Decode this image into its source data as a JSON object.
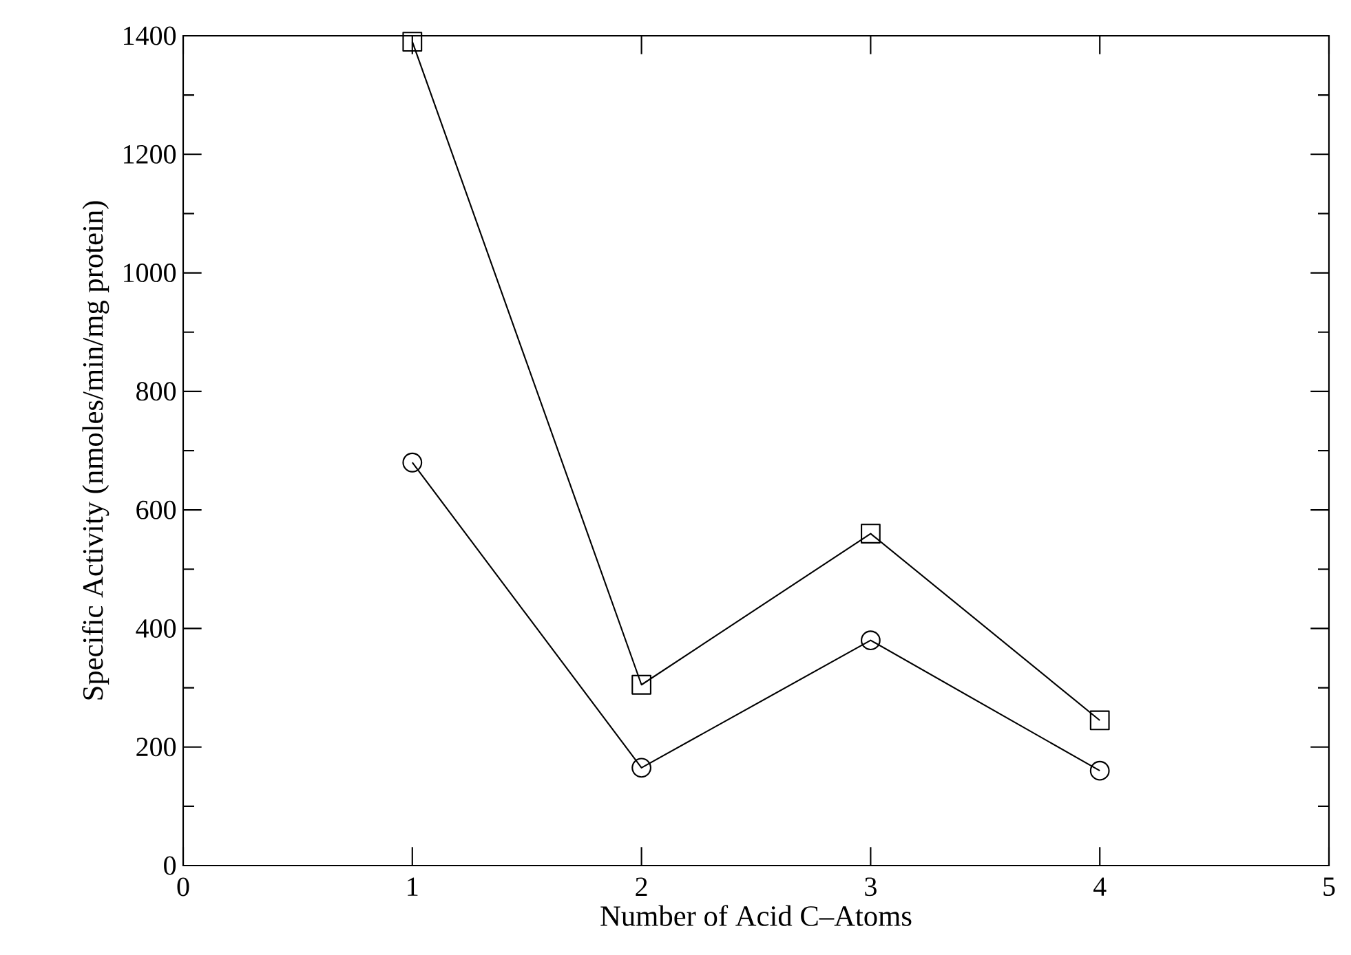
{
  "chart_data": {
    "type": "line",
    "xlabel": "Number of Acid C–Atoms",
    "ylabel": "Specific Activity (nmoles/min/mg protein)",
    "x": [
      1,
      2,
      3,
      4
    ],
    "series": [
      {
        "color": "#000000",
        "marker": "square",
        "values": [
          1390,
          305,
          560,
          245
        ]
      },
      {
        "color": "#000000",
        "marker": "circle",
        "values": [
          680,
          165,
          380,
          160
        ]
      }
    ],
    "xlim": [
      0,
      5
    ],
    "ylim": [
      0,
      1400
    ],
    "xticks": [
      0,
      1,
      2,
      3,
      4,
      5
    ],
    "yticks": [
      0,
      200,
      400,
      600,
      800,
      1000,
      1200,
      1400
    ],
    "line_style": "solid"
  }
}
